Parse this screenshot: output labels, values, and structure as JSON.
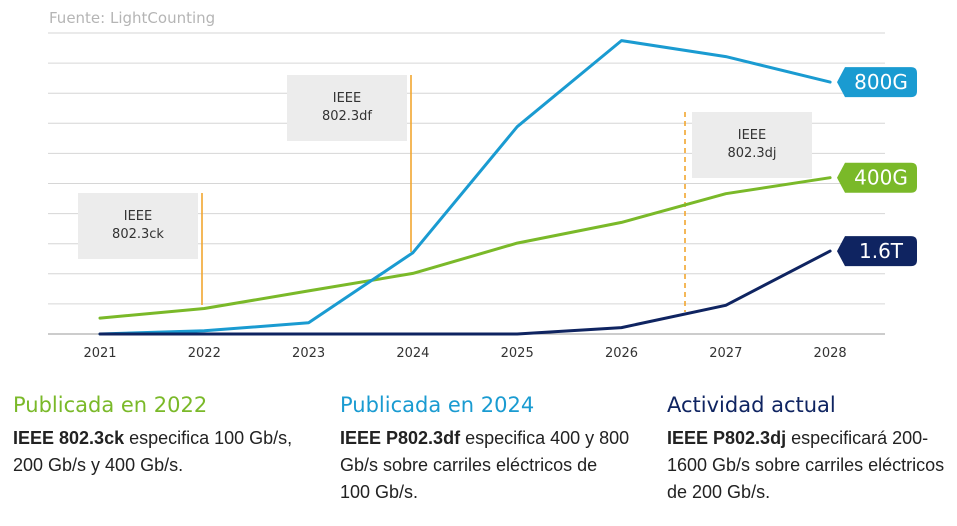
{
  "source": "Fuente: LightCounting",
  "colors": {
    "green": "#7ab929",
    "blue": "#1a9bd1",
    "navy": "#0f2461",
    "orange": "#f2a630",
    "grid": "#d6d6d6",
    "box": "#ececec"
  },
  "chart_data": {
    "type": "line",
    "x": [
      "2021",
      "2022",
      "2023",
      "2024",
      "2025",
      "2026",
      "2027",
      "2028"
    ],
    "ylim": [
      0,
      9
    ],
    "grid": "horizontal",
    "series": [
      {
        "name": "800G",
        "color": "#1a9bd1",
        "values": [
          0,
          0.1,
          0.35,
          2.55,
          6.5,
          9.2,
          8.7,
          7.9
        ]
      },
      {
        "name": "400G",
        "color": "#7ab929",
        "values": [
          0.5,
          0.8,
          1.35,
          1.9,
          2.85,
          3.5,
          4.4,
          4.9
        ]
      },
      {
        "name": "1.6T",
        "color": "#0f2461",
        "values": [
          0,
          0,
          0,
          0,
          0,
          0.2,
          0.9,
          2.6
        ]
      }
    ],
    "annotations": [
      {
        "label": "IEEE\n802.3ck",
        "x": 2022.0,
        "style": "solid"
      },
      {
        "label": "IEEE\n802.3df",
        "x": 2024.0,
        "style": "solid"
      },
      {
        "label": "IEEE\n802.3dj",
        "x": 2026.6,
        "style": "dashed"
      }
    ]
  },
  "columns": [
    {
      "heading": "Publicada en 2022",
      "color": "#7ab929",
      "bold": "IEEE 802.3ck",
      "text": " especifica 100 Gb/s, 200 Gb/s y 400 Gb/s."
    },
    {
      "heading": "Publicada en 2024",
      "color": "#1a9bd1",
      "bold": "IEEE P802.3df",
      "text": " especifica 400 y 800 Gb/s sobre carriles eléctricos de 100 Gb/s."
    },
    {
      "heading": "Actividad actual",
      "color": "#0f2461",
      "bold": "IEEE P802.3dj",
      "text": " especificará 200-1600 Gb/s sobre carriles eléctricos de 200 Gb/s."
    }
  ]
}
